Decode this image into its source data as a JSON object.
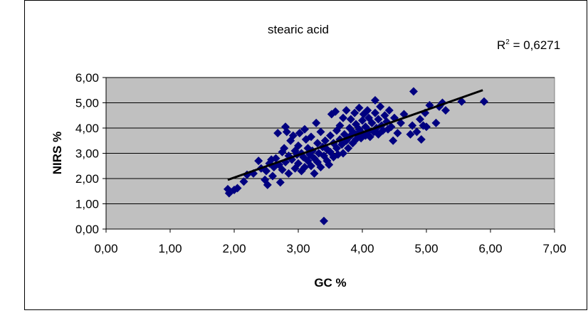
{
  "chart_data": {
    "type": "scatter",
    "title": "stearic acid",
    "xlabel": "GC %",
    "ylabel": "NIRS %",
    "xlim": [
      0,
      7
    ],
    "ylim": [
      0,
      6
    ],
    "x_ticks": [
      0,
      1,
      2,
      3,
      4,
      5,
      6,
      7
    ],
    "y_ticks": [
      0,
      1,
      2,
      3,
      4,
      5,
      6
    ],
    "x_tick_labels": [
      "0,00",
      "1,00",
      "2,00",
      "3,00",
      "4,00",
      "5,00",
      "6,00",
      "7,00"
    ],
    "y_tick_labels": [
      "0,00",
      "1,00",
      "2,00",
      "3,00",
      "4,00",
      "5,00",
      "6,00"
    ],
    "grid": "horizontal",
    "plot_background": "#c0c0c0",
    "marker_color": "#000080",
    "trendline_color": "#000000",
    "r_squared_label": "R",
    "r_squared_sup": "2",
    "r_squared_value": " = 0,6271",
    "trendline": {
      "x": [
        1.9,
        5.88
      ],
      "y": [
        1.95,
        5.5
      ]
    },
    "points": [
      {
        "x": 1.9,
        "y": 1.58
      },
      {
        "x": 1.92,
        "y": 1.42
      },
      {
        "x": 2.0,
        "y": 1.55
      },
      {
        "x": 2.05,
        "y": 1.62
      },
      {
        "x": 2.15,
        "y": 1.88
      },
      {
        "x": 2.2,
        "y": 2.15
      },
      {
        "x": 2.3,
        "y": 2.2
      },
      {
        "x": 2.38,
        "y": 2.7
      },
      {
        "x": 2.42,
        "y": 2.4
      },
      {
        "x": 2.48,
        "y": 1.95
      },
      {
        "x": 2.5,
        "y": 2.3
      },
      {
        "x": 2.52,
        "y": 1.75
      },
      {
        "x": 2.55,
        "y": 2.6
      },
      {
        "x": 2.58,
        "y": 2.75
      },
      {
        "x": 2.6,
        "y": 2.1
      },
      {
        "x": 2.62,
        "y": 2.45
      },
      {
        "x": 2.65,
        "y": 2.8
      },
      {
        "x": 2.68,
        "y": 3.8
      },
      {
        "x": 2.7,
        "y": 2.55
      },
      {
        "x": 2.72,
        "y": 1.85
      },
      {
        "x": 2.75,
        "y": 3.05
      },
      {
        "x": 2.75,
        "y": 2.35
      },
      {
        "x": 2.78,
        "y": 3.2
      },
      {
        "x": 2.8,
        "y": 4.05
      },
      {
        "x": 2.8,
        "y": 2.65
      },
      {
        "x": 2.82,
        "y": 3.85
      },
      {
        "x": 2.85,
        "y": 2.9
      },
      {
        "x": 2.85,
        "y": 2.2
      },
      {
        "x": 2.88,
        "y": 3.5
      },
      {
        "x": 2.9,
        "y": 2.75
      },
      {
        "x": 2.92,
        "y": 3.7
      },
      {
        "x": 2.95,
        "y": 3.1
      },
      {
        "x": 2.95,
        "y": 2.4
      },
      {
        "x": 2.98,
        "y": 2.95
      },
      {
        "x": 3.0,
        "y": 3.3
      },
      {
        "x": 3.0,
        "y": 2.6
      },
      {
        "x": 3.02,
        "y": 3.8
      },
      {
        "x": 3.05,
        "y": 2.3
      },
      {
        "x": 3.05,
        "y": 3.0
      },
      {
        "x": 3.08,
        "y": 2.85
      },
      {
        "x": 3.1,
        "y": 3.95
      },
      {
        "x": 3.1,
        "y": 2.45
      },
      {
        "x": 3.12,
        "y": 3.55
      },
      {
        "x": 3.15,
        "y": 2.7
      },
      {
        "x": 3.15,
        "y": 3.2
      },
      {
        "x": 3.18,
        "y": 2.95
      },
      {
        "x": 3.2,
        "y": 2.5
      },
      {
        "x": 3.2,
        "y": 3.65
      },
      {
        "x": 3.22,
        "y": 3.1
      },
      {
        "x": 3.25,
        "y": 2.2
      },
      {
        "x": 3.25,
        "y": 2.8
      },
      {
        "x": 3.28,
        "y": 4.2
      },
      {
        "x": 3.3,
        "y": 3.4
      },
      {
        "x": 3.3,
        "y": 2.65
      },
      {
        "x": 3.32,
        "y": 3.0
      },
      {
        "x": 3.35,
        "y": 2.45
      },
      {
        "x": 3.35,
        "y": 3.85
      },
      {
        "x": 3.38,
        "y": 3.25
      },
      {
        "x": 3.4,
        "y": 2.9
      },
      {
        "x": 3.4,
        "y": 0.32
      },
      {
        "x": 3.42,
        "y": 3.5
      },
      {
        "x": 3.45,
        "y": 2.7
      },
      {
        "x": 3.45,
        "y": 3.15
      },
      {
        "x": 3.48,
        "y": 2.55
      },
      {
        "x": 3.5,
        "y": 3.7
      },
      {
        "x": 3.5,
        "y": 3.05
      },
      {
        "x": 3.52,
        "y": 4.55
      },
      {
        "x": 3.55,
        "y": 2.85
      },
      {
        "x": 3.55,
        "y": 3.4
      },
      {
        "x": 3.58,
        "y": 4.65
      },
      {
        "x": 3.6,
        "y": 3.2
      },
      {
        "x": 3.6,
        "y": 3.9
      },
      {
        "x": 3.62,
        "y": 2.95
      },
      {
        "x": 3.65,
        "y": 3.55
      },
      {
        "x": 3.65,
        "y": 4.1
      },
      {
        "x": 3.68,
        "y": 3.35
      },
      {
        "x": 3.7,
        "y": 4.4
      },
      {
        "x": 3.7,
        "y": 3.0
      },
      {
        "x": 3.72,
        "y": 3.75
      },
      {
        "x": 3.75,
        "y": 4.7
      },
      {
        "x": 3.75,
        "y": 3.5
      },
      {
        "x": 3.78,
        "y": 3.2
      },
      {
        "x": 3.8,
        "y": 4.0
      },
      {
        "x": 3.8,
        "y": 3.65
      },
      {
        "x": 3.82,
        "y": 4.35
      },
      {
        "x": 3.85,
        "y": 3.4
      },
      {
        "x": 3.85,
        "y": 3.85
      },
      {
        "x": 3.88,
        "y": 4.6
      },
      {
        "x": 3.9,
        "y": 3.55
      },
      {
        "x": 3.9,
        "y": 4.15
      },
      {
        "x": 3.92,
        "y": 3.75
      },
      {
        "x": 3.95,
        "y": 4.8
      },
      {
        "x": 3.95,
        "y": 3.95
      },
      {
        "x": 3.98,
        "y": 3.6
      },
      {
        "x": 4.0,
        "y": 4.3
      },
      {
        "x": 4.0,
        "y": 3.8
      },
      {
        "x": 4.02,
        "y": 4.55
      },
      {
        "x": 4.05,
        "y": 3.7
      },
      {
        "x": 4.05,
        "y": 4.05
      },
      {
        "x": 4.08,
        "y": 4.7
      },
      {
        "x": 4.1,
        "y": 3.9
      },
      {
        "x": 4.1,
        "y": 4.4
      },
      {
        "x": 4.12,
        "y": 3.65
      },
      {
        "x": 4.15,
        "y": 4.2
      },
      {
        "x": 4.18,
        "y": 3.85
      },
      {
        "x": 4.2,
        "y": 4.6
      },
      {
        "x": 4.2,
        "y": 5.1
      },
      {
        "x": 4.22,
        "y": 4.0
      },
      {
        "x": 4.25,
        "y": 3.75
      },
      {
        "x": 4.25,
        "y": 4.35
      },
      {
        "x": 4.28,
        "y": 4.85
      },
      {
        "x": 4.3,
        "y": 4.1
      },
      {
        "x": 4.32,
        "y": 3.9
      },
      {
        "x": 4.35,
        "y": 4.5
      },
      {
        "x": 4.38,
        "y": 4.25
      },
      {
        "x": 4.4,
        "y": 3.95
      },
      {
        "x": 4.42,
        "y": 4.7
      },
      {
        "x": 4.45,
        "y": 4.05
      },
      {
        "x": 4.48,
        "y": 3.5
      },
      {
        "x": 4.5,
        "y": 4.4
      },
      {
        "x": 4.55,
        "y": 3.8
      },
      {
        "x": 4.6,
        "y": 4.2
      },
      {
        "x": 4.65,
        "y": 4.55
      },
      {
        "x": 4.75,
        "y": 3.75
      },
      {
        "x": 4.78,
        "y": 4.1
      },
      {
        "x": 4.8,
        "y": 5.45
      },
      {
        "x": 4.85,
        "y": 3.85
      },
      {
        "x": 4.9,
        "y": 4.35
      },
      {
        "x": 4.92,
        "y": 3.55
      },
      {
        "x": 4.95,
        "y": 4.1
      },
      {
        "x": 4.98,
        "y": 4.6
      },
      {
        "x": 5.0,
        "y": 4.05
      },
      {
        "x": 5.05,
        "y": 4.9
      },
      {
        "x": 5.15,
        "y": 4.2
      },
      {
        "x": 5.2,
        "y": 4.85
      },
      {
        "x": 5.25,
        "y": 5.0
      },
      {
        "x": 5.3,
        "y": 4.7
      },
      {
        "x": 5.55,
        "y": 5.05
      },
      {
        "x": 5.9,
        "y": 5.05
      }
    ]
  }
}
